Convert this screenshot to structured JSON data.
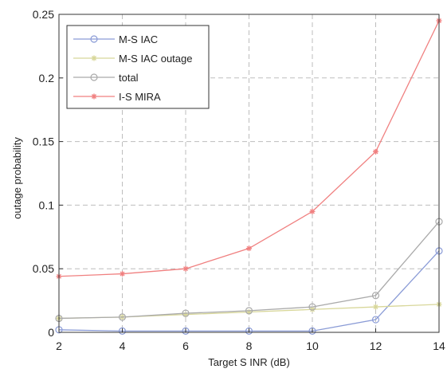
{
  "chart_data": {
    "type": "line",
    "title": "",
    "xlabel": "Target S INR (dB)",
    "ylabel": "outage probability",
    "x": [
      2,
      4,
      6,
      8,
      10,
      12,
      14
    ],
    "xlim": [
      2,
      14
    ],
    "ylim": [
      0,
      0.25
    ],
    "xticks": [
      2,
      4,
      6,
      8,
      10,
      12,
      14
    ],
    "yticks": [
      0,
      0.05,
      0.1,
      0.15,
      0.2,
      0.25
    ],
    "xtick_labels": [
      "2",
      "4",
      "6",
      "8",
      "10",
      "12",
      "14"
    ],
    "ytick_labels": [
      "0",
      "0.05",
      "0.1",
      "0.15",
      "0.2",
      "0.25"
    ],
    "grid": true,
    "legend_position": "top-left",
    "series": [
      {
        "name": "M-S IAC",
        "values": [
          0.002,
          0.001,
          0.001,
          0.001,
          0.001,
          0.01,
          0.064
        ],
        "color": "#8a9bd6",
        "marker": "circle"
      },
      {
        "name": "M-S IAC outage",
        "values": [
          0.011,
          0.012,
          0.014,
          0.016,
          0.018,
          0.02,
          0.022
        ],
        "color": "#d8d79a",
        "marker": "asterisk"
      },
      {
        "name": "total",
        "values": [
          0.011,
          0.012,
          0.015,
          0.017,
          0.02,
          0.029,
          0.087
        ],
        "color": "#aaaaaa",
        "marker": "circle"
      },
      {
        "name": "I-S MIRA",
        "values": [
          0.044,
          0.046,
          0.05,
          0.066,
          0.095,
          0.142,
          0.245
        ],
        "color": "#f08080",
        "marker": "asterisk"
      }
    ]
  }
}
